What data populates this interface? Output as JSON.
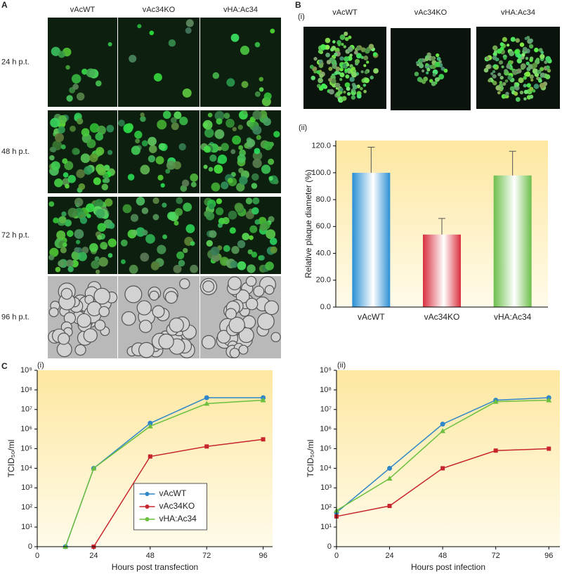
{
  "panel_a": {
    "label": "A",
    "columns": [
      "vAcWT",
      "vAc34KO",
      "vHA:Ac34"
    ],
    "rows": [
      "24 h p.t.",
      "48 h p.t.",
      "72 h p.t.",
      "96 h p.t."
    ]
  },
  "panel_b": {
    "label": "B",
    "subpanel": "(i)",
    "columns": [
      "vAcWT",
      "vAc34KO",
      "vHA:Ac34"
    ]
  },
  "panel_c": {
    "label": "C"
  },
  "chart_data": [
    {
      "type": "bar",
      "title": "(ii)",
      "ylabel": "Relative plaque diameter (%)",
      "categories": [
        "vAcWT",
        "vAc34KO",
        "vHA:Ac34"
      ],
      "values": [
        100,
        54,
        98
      ],
      "errors": [
        19,
        12,
        18
      ],
      "colors": [
        "#2a8fd4",
        "#d9303f",
        "#6cbf4a"
      ],
      "ylim": [
        0,
        124
      ],
      "yticks": [
        {
          "value": 0,
          "label": "0.0"
        },
        {
          "value": 20,
          "label": "20.0"
        },
        {
          "value": 40,
          "label": "40.0"
        },
        {
          "value": 60,
          "label": "60.0"
        },
        {
          "value": 80,
          "label": "80.0"
        },
        {
          "value": 100,
          "label": "100.0"
        },
        {
          "value": 120,
          "label": "120.0"
        }
      ]
    },
    {
      "type": "line",
      "title": "(i)",
      "xlabel": "Hours post transfection",
      "ylabel": "TCID₅₀/ml",
      "log": true,
      "legend": "bottom-center",
      "x": [
        12,
        24,
        48,
        72,
        96
      ],
      "series": [
        {
          "name": "vAcWT",
          "color": "#2f86c8",
          "marker": "circle",
          "values": [
            1,
            10000,
            2000000,
            40000000,
            40000000
          ]
        },
        {
          "name": "vAc34KO",
          "color": "#c8262e",
          "marker": "square",
          "values": [
            null,
            1,
            40000,
            130000,
            300000
          ]
        },
        {
          "name": "vHA:Ac34",
          "color": "#6cbf3f",
          "marker": "triangle",
          "values": [
            1,
            10000,
            1400000,
            20000000,
            30000000
          ]
        }
      ],
      "xlim": [
        0,
        100
      ],
      "xticks": [
        0,
        24,
        48,
        72,
        96
      ],
      "ylim": [
        1,
        1000000000
      ],
      "yticks": [
        {
          "value": 1,
          "label": "0"
        },
        {
          "value": 10,
          "label": "10¹"
        },
        {
          "value": 100,
          "label": "10²"
        },
        {
          "value": 1000,
          "label": "10³"
        },
        {
          "value": 10000,
          "label": "10⁴"
        },
        {
          "value": 100000,
          "label": "10⁵"
        },
        {
          "value": 1000000,
          "label": "10⁶"
        },
        {
          "value": 10000000,
          "label": "10⁷"
        },
        {
          "value": 100000000,
          "label": "10⁸"
        },
        {
          "value": 1000000000,
          "label": "10⁹"
        }
      ]
    },
    {
      "type": "line",
      "title": "(ii)",
      "xlabel": "Hours post  infection",
      "ylabel": "TCID₅₀/ml",
      "log": true,
      "x": [
        0,
        24,
        48,
        72,
        96
      ],
      "series": [
        {
          "name": "vAcWT",
          "color": "#2f86c8",
          "marker": "circle",
          "values": [
            55,
            10000,
            1800000,
            30000000,
            40000000
          ]
        },
        {
          "name": "vAc34KO",
          "color": "#c8262e",
          "marker": "square",
          "values": [
            35,
            120,
            10000,
            80000,
            100000
          ]
        },
        {
          "name": "vHA:Ac34",
          "color": "#6cbf3f",
          "marker": "triangle",
          "values": [
            70,
            3000,
            800000,
            25000000,
            30000000
          ]
        }
      ],
      "xlim": [
        0,
        101
      ],
      "xticks": [
        0,
        24,
        48,
        72,
        96
      ],
      "ylim": [
        1,
        1000000000
      ],
      "yticks": [
        {
          "value": 1,
          "label": "0"
        },
        {
          "value": 10,
          "label": "10¹"
        },
        {
          "value": 100,
          "label": "10²"
        },
        {
          "value": 1000,
          "label": "10³"
        },
        {
          "value": 10000,
          "label": "10⁴"
        },
        {
          "value": 100000,
          "label": "10⁵"
        },
        {
          "value": 1000000,
          "label": "10⁶"
        },
        {
          "value": 10000000,
          "label": "10⁷"
        },
        {
          "value": 100000000,
          "label": "10⁸"
        },
        {
          "value": 1000000000,
          "label": "10⁹"
        }
      ]
    }
  ]
}
